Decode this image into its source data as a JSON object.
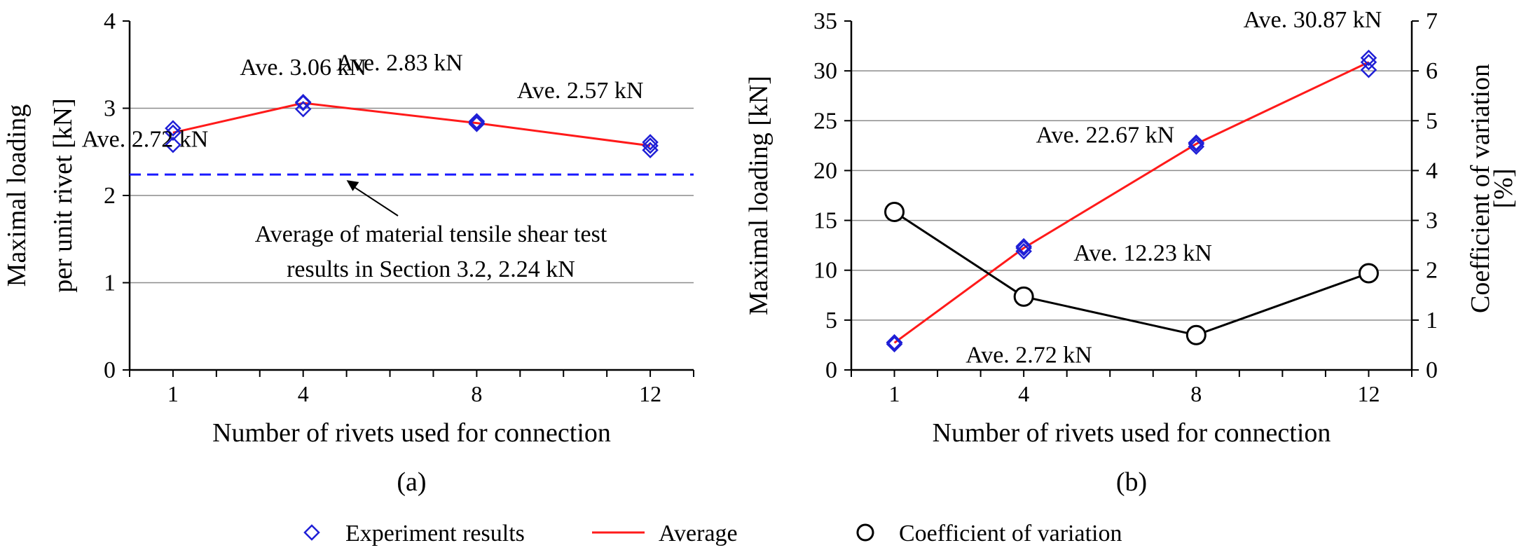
{
  "chart_data": [
    {
      "type": "scatter",
      "panel_label": "(a)",
      "xlabel": "Number of rivets used for connection",
      "ylabel_lines": [
        "Maximal loading",
        "per unit rivet [kN]"
      ],
      "xlim": [
        0,
        13
      ],
      "x_ticks": [
        1,
        4,
        8,
        12
      ],
      "ylim": [
        0,
        4
      ],
      "y_ticks": [
        0,
        1,
        2,
        3,
        4
      ],
      "grid": true,
      "series": [
        {
          "name": "Experiment results",
          "points": [
            {
              "x": 1,
              "y": 2.77
            },
            {
              "x": 1,
              "y": 2.72
            },
            {
              "x": 1,
              "y": 2.58
            },
            {
              "x": 4,
              "y": 3.07
            },
            {
              "x": 4,
              "y": 3.06
            },
            {
              "x": 4,
              "y": 2.99
            },
            {
              "x": 8,
              "y": 2.85
            },
            {
              "x": 8,
              "y": 2.83
            },
            {
              "x": 8,
              "y": 2.82
            },
            {
              "x": 12,
              "y": 2.61
            },
            {
              "x": 12,
              "y": 2.57
            },
            {
              "x": 12,
              "y": 2.52
            }
          ]
        },
        {
          "name": "Average",
          "x": [
            1,
            4,
            8,
            12
          ],
          "values": [
            2.72,
            3.06,
            2.83,
            2.57
          ]
        }
      ],
      "reference_line": {
        "y": 2.24
      },
      "annotations": [
        {
          "text": "Ave. 2.72 kN",
          "x": 1,
          "y": 2.72
        },
        {
          "text": "Ave. 3.06 kN",
          "x": 4,
          "y": 3.06
        },
        {
          "text": "Ave. 2.83 kN",
          "x": 8,
          "y": 2.83
        },
        {
          "text": "Ave. 2.57 kN",
          "x": 12,
          "y": 2.57
        },
        {
          "text_lines": [
            "Average of material tensile shear test",
            "results in Section 3.2, 2.24 kN"
          ],
          "x": 5,
          "y": 2.24
        }
      ]
    },
    {
      "type": "scatter",
      "panel_label": "(b)",
      "xlabel": "Number of rivets used for connection",
      "ylabel": "Maximal loading [kN]",
      "y2label_lines": [
        "Coefficient of variation",
        "[%]"
      ],
      "xlim": [
        0,
        13
      ],
      "x_ticks": [
        1,
        4,
        8,
        12
      ],
      "ylim": [
        0,
        35
      ],
      "y_ticks": [
        0,
        5,
        10,
        15,
        20,
        25,
        30,
        35
      ],
      "y2lim": [
        0,
        7
      ],
      "y2_ticks": [
        0,
        1,
        2,
        3,
        4,
        5,
        6,
        7
      ],
      "grid": true,
      "series": [
        {
          "name": "Experiment results",
          "points": [
            {
              "x": 1,
              "y": 2.77
            },
            {
              "x": 1,
              "y": 2.72
            },
            {
              "x": 1,
              "y": 2.58
            },
            {
              "x": 4,
              "y": 12.4
            },
            {
              "x": 4,
              "y": 12.23
            },
            {
              "x": 4,
              "y": 11.9
            },
            {
              "x": 8,
              "y": 22.8
            },
            {
              "x": 8,
              "y": 22.67
            },
            {
              "x": 8,
              "y": 22.4
            },
            {
              "x": 12,
              "y": 31.3
            },
            {
              "x": 12,
              "y": 30.87
            },
            {
              "x": 12,
              "y": 30.1
            }
          ]
        },
        {
          "name": "Average",
          "x": [
            1,
            4,
            8,
            12
          ],
          "values": [
            2.72,
            12.23,
            22.67,
            30.87
          ]
        },
        {
          "name": "Coefficient of variation",
          "axis": "right",
          "x": [
            1,
            4,
            8,
            12
          ],
          "values": [
            3.17,
            1.47,
            0.7,
            1.94
          ]
        }
      ],
      "annotations": [
        {
          "text": "Ave. 2.72 kN",
          "x": 1,
          "y": 2.72
        },
        {
          "text": "Ave. 12.23 kN",
          "x": 4,
          "y": 12.23
        },
        {
          "text": "Ave. 22.67 kN",
          "x": 8,
          "y": 22.67
        },
        {
          "text": "Ave. 30.87 kN",
          "x": 12,
          "y": 30.87
        }
      ]
    }
  ],
  "legend": {
    "placement": "bottom-center",
    "items": [
      {
        "label": "Experiment results",
        "marker": "diamond-open",
        "color": "#1f1fd6"
      },
      {
        "label": "Average",
        "marker": "line",
        "color": "#ff1a1a"
      },
      {
        "label": "Coefficient of variation",
        "marker": "circle-open",
        "color": "#000000"
      }
    ]
  },
  "colors": {
    "experiment": "#1f1fd6",
    "average": "#ff1a1a",
    "reference": "#1a1aff",
    "cov": "#000000",
    "grid": "#8c8c8c"
  }
}
